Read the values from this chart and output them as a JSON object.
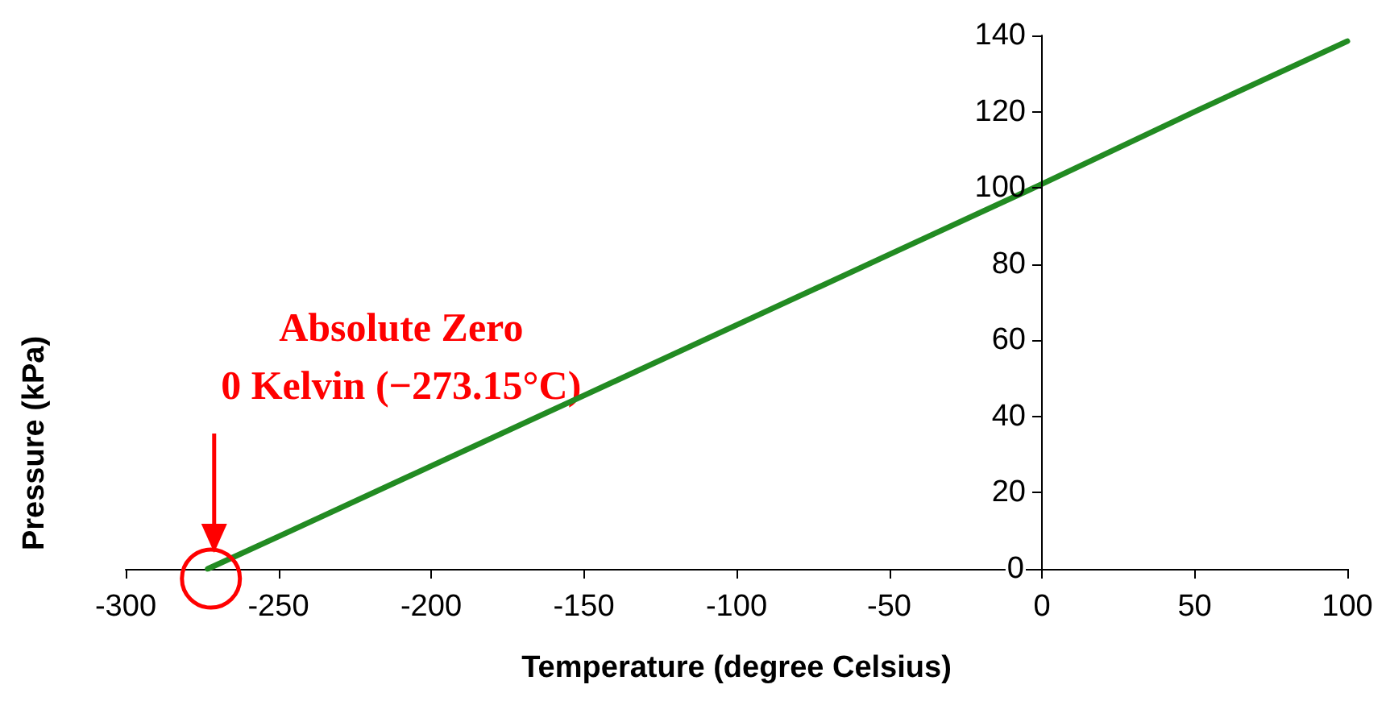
{
  "chart_data": {
    "type": "line",
    "xlabel": "Temperature (degree Celsius)",
    "ylabel": "Pressure (kPa)",
    "x": [
      -273.15,
      -250,
      -200,
      -150,
      -100,
      -50,
      0,
      50,
      100
    ],
    "series": [
      {
        "color": "#228b22",
        "values": [
          0,
          8.5,
          27,
          45.5,
          64,
          82.5,
          101,
          120,
          138.5
        ]
      }
    ],
    "xlim": [
      -300,
      100
    ],
    "xticks": [
      -300,
      -250,
      -200,
      -150,
      -100,
      -50,
      0,
      50,
      100
    ],
    "ylim": [
      0,
      140
    ],
    "yticks": [
      0,
      20,
      40,
      60,
      80,
      100,
      120,
      140
    ],
    "marker": "none",
    "line_style": "solid",
    "annotations": [
      "Absolute Zero",
      "0 Kelvin (−273.15°C)"
    ]
  }
}
